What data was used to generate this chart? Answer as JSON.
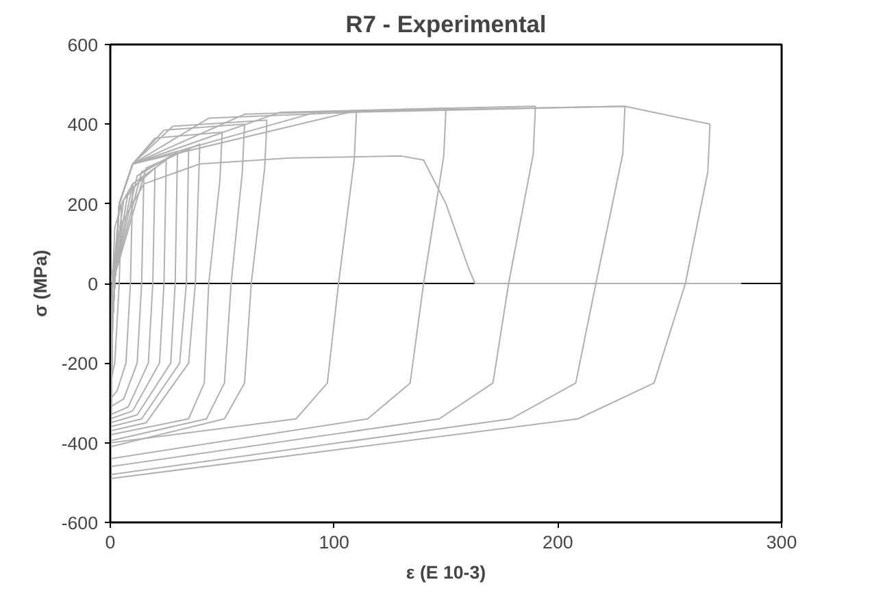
{
  "chart_data": {
    "type": "line",
    "title": "R7 - Experimental",
    "xlabel": "ε (E 10-3)",
    "ylabel": "σ (MPa)",
    "xlim": [
      0,
      300
    ],
    "ylim": [
      -600,
      600
    ],
    "xticks": [
      0,
      100,
      200,
      300
    ],
    "yticks": [
      -600,
      -400,
      -200,
      0,
      200,
      400,
      600
    ],
    "grid": false,
    "ref_lines": [
      {
        "axis": "y",
        "value": 0,
        "color": "#000000"
      }
    ],
    "marker": "none",
    "line_style": "solid",
    "series": [
      {
        "color": "#b0b0b0",
        "x": [
          0,
          1,
          2,
          5
        ],
        "values": [
          -250,
          0,
          140,
          200
        ]
      },
      {
        "color": "#b0b0b0",
        "x": [
          5,
          4,
          2,
          0
        ],
        "values": [
          200,
          0,
          -200,
          -250
        ]
      },
      {
        "color": "#b0b0b0",
        "x": [
          0,
          1,
          4,
          10
        ],
        "values": [
          -290,
          0,
          190,
          250
        ]
      },
      {
        "color": "#b0b0b0",
        "x": [
          10,
          9,
          7,
          3,
          0
        ],
        "values": [
          250,
          0,
          -200,
          -270,
          -290
        ]
      },
      {
        "color": "#b0b0b0",
        "x": [
          0,
          1,
          6,
          15
        ],
        "values": [
          -310,
          0,
          210,
          270
        ]
      },
      {
        "color": "#b0b0b0",
        "x": [
          15,
          14,
          12,
          6,
          0
        ],
        "values": [
          270,
          0,
          -200,
          -290,
          -310
        ]
      },
      {
        "color": "#b0b0b0",
        "x": [
          0,
          1,
          8,
          20
        ],
        "values": [
          -330,
          0,
          230,
          290
        ]
      },
      {
        "color": "#b0b0b0",
        "x": [
          20,
          19,
          17,
          8,
          0
        ],
        "values": [
          290,
          0,
          -200,
          -310,
          -330
        ]
      },
      {
        "color": "#b0b0b0",
        "x": [
          0,
          1,
          10,
          25
        ],
        "values": [
          -340,
          0,
          250,
          310
        ]
      },
      {
        "color": "#b0b0b0",
        "x": [
          25,
          24,
          22,
          10,
          0
        ],
        "values": [
          310,
          0,
          -200,
          -320,
          -340
        ]
      },
      {
        "color": "#b0b0b0",
        "x": [
          0,
          1,
          12,
          30
        ],
        "values": [
          -350,
          0,
          270,
          330
        ]
      },
      {
        "color": "#b0b0b0",
        "x": [
          30,
          29,
          27,
          12,
          0
        ],
        "values": [
          330,
          0,
          -200,
          -330,
          -350
        ]
      },
      {
        "color": "#b0b0b0",
        "x": [
          0,
          1,
          14,
          35
        ],
        "values": [
          -360,
          0,
          280,
          340
        ]
      },
      {
        "color": "#b0b0b0",
        "x": [
          35,
          34,
          31,
          14,
          0
        ],
        "values": [
          340,
          0,
          -200,
          -340,
          -360
        ]
      },
      {
        "color": "#b0b0b0",
        "x": [
          0,
          1,
          16,
          40
        ],
        "values": [
          -370,
          0,
          290,
          350
        ]
      },
      {
        "color": "#b0b0b0",
        "x": [
          40,
          38,
          35,
          16,
          0
        ],
        "values": [
          350,
          0,
          -200,
          -350,
          -370
        ]
      },
      {
        "color": "#b0b0b0",
        "x": [
          0,
          1,
          4,
          10,
          20,
          50
        ],
        "values": [
          -380,
          -100,
          200,
          300,
          365,
          380
        ]
      },
      {
        "color": "#b0b0b0",
        "x": [
          50,
          49,
          44,
          42,
          35,
          0
        ],
        "values": [
          380,
          260,
          0,
          -250,
          -340,
          -380
        ]
      },
      {
        "color": "#b0b0b0",
        "x": [
          0,
          1,
          4,
          10,
          24,
          60
        ],
        "values": [
          -395,
          -100,
          200,
          300,
          385,
          400
        ]
      },
      {
        "color": "#b0b0b0",
        "x": [
          60,
          59,
          54,
          51,
          43,
          0
        ],
        "values": [
          400,
          280,
          0,
          -250,
          -340,
          -395
        ]
      },
      {
        "color": "#b0b0b0",
        "x": [
          0,
          1,
          4,
          10,
          28,
          70
        ],
        "values": [
          -410,
          -100,
          200,
          300,
          395,
          410
        ]
      },
      {
        "color": "#b0b0b0",
        "x": [
          70,
          69,
          63,
          60,
          51,
          0
        ],
        "values": [
          410,
          290,
          0,
          -250,
          -340,
          -410
        ]
      },
      {
        "color": "#b0b0b0",
        "x": [
          0,
          1,
          4,
          10,
          44,
          110
        ],
        "values": [
          -400,
          -100,
          200,
          300,
          415,
          430
        ]
      },
      {
        "color": "#b0b0b0",
        "x": [
          110,
          109,
          102,
          97,
          83,
          0
        ],
        "values": [
          430,
          310,
          0,
          -250,
          -340,
          -400
        ]
      },
      {
        "color": "#b0b0b0",
        "x": [
          0,
          1,
          4,
          10,
          60,
          150
        ],
        "values": [
          -440,
          -100,
          200,
          300,
          425,
          440
        ]
      },
      {
        "color": "#b0b0b0",
        "x": [
          150,
          149,
          140,
          134,
          115,
          0
        ],
        "values": [
          440,
          320,
          0,
          -250,
          -340,
          -440
        ]
      },
      {
        "color": "#b0b0b0",
        "x": [
          0,
          1,
          4,
          10,
          76,
          190
        ],
        "values": [
          -460,
          -100,
          200,
          300,
          430,
          445
        ]
      },
      {
        "color": "#b0b0b0",
        "x": [
          190,
          189,
          178,
          171,
          147,
          0
        ],
        "values": [
          445,
          325,
          0,
          -250,
          -340,
          -460
        ]
      },
      {
        "color": "#b0b0b0",
        "x": [
          0,
          1,
          4,
          10,
          92,
          230
        ],
        "values": [
          -480,
          -100,
          200,
          300,
          430,
          445
        ]
      },
      {
        "color": "#b0b0b0",
        "x": [
          230,
          229,
          217,
          208,
          179,
          0
        ],
        "values": [
          445,
          325,
          0,
          -250,
          -340,
          -480
        ]
      },
      {
        "color": "#b0b0b0",
        "x": [
          0,
          1,
          4,
          10,
          107,
          230,
          268
        ],
        "values": [
          -490,
          -100,
          200,
          300,
          430,
          445,
          400
        ]
      },
      {
        "color": "#b0b0b0",
        "x": [
          268,
          267,
          257,
          243,
          209,
          0
        ],
        "values": [
          400,
          280,
          0,
          -250,
          -340,
          -490
        ]
      },
      {
        "color": "#b0b0b0",
        "x": [
          0,
          5,
          15,
          40,
          80,
          130,
          140,
          150,
          160,
          163,
          282
        ],
        "values": [
          0,
          150,
          250,
          300,
          315,
          320,
          310,
          200,
          40,
          0,
          0
        ]
      }
    ]
  }
}
